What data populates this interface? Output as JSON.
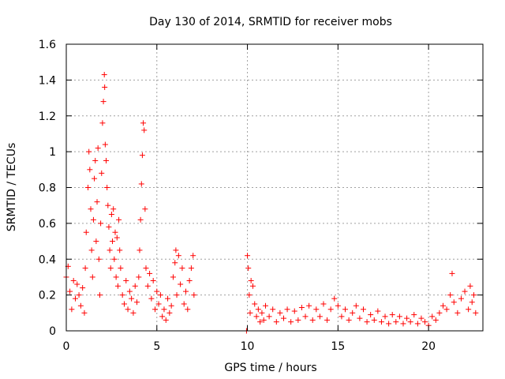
{
  "chart_data": {
    "type": "scatter",
    "title": "Day 130 of 2014, SRMTID for receiver mobs",
    "xlabel": "GPS time / hours",
    "ylabel": "SRMTID / TECUs",
    "xlim": [
      0,
      23
    ],
    "ylim": [
      0,
      1.6
    ],
    "grid": true,
    "x_ticks": [
      0,
      5,
      10,
      15,
      20
    ],
    "y_ticks": [
      0,
      0.2,
      0.4,
      0.6,
      0.8,
      1,
      1.2,
      1.4,
      1.6
    ],
    "x_tick_labels": [
      "0",
      "5",
      "10",
      "15",
      "20"
    ],
    "y_tick_labels": [
      "0",
      "0.2",
      "0.4",
      "0.6",
      "0.8",
      "1",
      "1.2",
      "1.4",
      "1.6"
    ],
    "marker": "plus",
    "color": "#ff0000",
    "series": [
      {
        "name": "mobs",
        "points": [
          [
            0.0,
            0.3
          ],
          [
            0.1,
            0.36
          ],
          [
            0.2,
            0.22
          ],
          [
            0.3,
            0.12
          ],
          [
            0.4,
            0.28
          ],
          [
            0.5,
            0.18
          ],
          [
            0.6,
            0.26
          ],
          [
            0.7,
            0.2
          ],
          [
            0.8,
            0.14
          ],
          [
            0.9,
            0.24
          ],
          [
            1.0,
            0.1
          ],
          [
            1.05,
            0.35
          ],
          [
            1.1,
            0.55
          ],
          [
            1.2,
            0.8
          ],
          [
            1.25,
            1.0
          ],
          [
            1.3,
            0.9
          ],
          [
            1.35,
            0.68
          ],
          [
            1.4,
            0.45
          ],
          [
            1.45,
            0.3
          ],
          [
            1.5,
            0.62
          ],
          [
            1.55,
            0.85
          ],
          [
            1.6,
            0.95
          ],
          [
            1.65,
            0.5
          ],
          [
            1.7,
            0.72
          ],
          [
            1.75,
            1.02
          ],
          [
            1.8,
            0.4
          ],
          [
            1.85,
            0.2
          ],
          [
            1.9,
            0.6
          ],
          [
            1.95,
            0.88
          ],
          [
            2.0,
            1.16
          ],
          [
            2.05,
            1.28
          ],
          [
            2.1,
            1.43
          ],
          [
            2.12,
            1.36
          ],
          [
            2.15,
            1.04
          ],
          [
            2.2,
            0.95
          ],
          [
            2.25,
            0.8
          ],
          [
            2.3,
            0.7
          ],
          [
            2.35,
            0.58
          ],
          [
            2.4,
            0.45
          ],
          [
            2.45,
            0.35
          ],
          [
            2.5,
            0.65
          ],
          [
            2.55,
            0.5
          ],
          [
            2.6,
            0.68
          ],
          [
            2.65,
            0.4
          ],
          [
            2.7,
            0.55
          ],
          [
            2.75,
            0.3
          ],
          [
            2.8,
            0.52
          ],
          [
            2.85,
            0.25
          ],
          [
            2.9,
            0.62
          ],
          [
            2.95,
            0.45
          ],
          [
            3.0,
            0.35
          ],
          [
            3.1,
            0.2
          ],
          [
            3.2,
            0.15
          ],
          [
            3.3,
            0.28
          ],
          [
            3.4,
            0.12
          ],
          [
            3.5,
            0.22
          ],
          [
            3.6,
            0.18
          ],
          [
            3.7,
            0.1
          ],
          [
            3.8,
            0.25
          ],
          [
            3.9,
            0.16
          ],
          [
            4.0,
            0.3
          ],
          [
            4.05,
            0.45
          ],
          [
            4.1,
            0.62
          ],
          [
            4.15,
            0.82
          ],
          [
            4.2,
            0.98
          ],
          [
            4.25,
            1.16
          ],
          [
            4.3,
            1.12
          ],
          [
            4.35,
            0.68
          ],
          [
            4.4,
            0.35
          ],
          [
            4.5,
            0.25
          ],
          [
            4.6,
            0.32
          ],
          [
            4.7,
            0.18
          ],
          [
            4.8,
            0.28
          ],
          [
            4.9,
            0.12
          ],
          [
            5.0,
            0.22
          ],
          [
            5.1,
            0.15
          ],
          [
            5.2,
            0.2
          ],
          [
            5.3,
            0.08
          ],
          [
            5.4,
            0.12
          ],
          [
            5.5,
            0.06
          ],
          [
            5.6,
            0.18
          ],
          [
            5.7,
            0.1
          ],
          [
            5.8,
            0.14
          ],
          [
            5.9,
            0.3
          ],
          [
            6.0,
            0.38
          ],
          [
            6.05,
            0.45
          ],
          [
            6.1,
            0.2
          ],
          [
            6.2,
            0.42
          ],
          [
            6.3,
            0.26
          ],
          [
            6.4,
            0.35
          ],
          [
            6.5,
            0.15
          ],
          [
            6.6,
            0.22
          ],
          [
            6.7,
            0.12
          ],
          [
            6.8,
            0.28
          ],
          [
            6.9,
            0.35
          ],
          [
            7.0,
            0.42
          ],
          [
            7.05,
            0.2
          ],
          [
            9.95,
            0.0
          ],
          [
            10.0,
            0.42
          ],
          [
            10.05,
            0.35
          ],
          [
            10.1,
            0.2
          ],
          [
            10.15,
            0.1
          ],
          [
            10.2,
            0.28
          ],
          [
            10.3,
            0.25
          ],
          [
            10.4,
            0.15
          ],
          [
            10.5,
            0.08
          ],
          [
            10.6,
            0.12
          ],
          [
            10.7,
            0.05
          ],
          [
            10.8,
            0.1
          ],
          [
            10.9,
            0.06
          ],
          [
            11.0,
            0.14
          ],
          [
            11.2,
            0.08
          ],
          [
            11.4,
            0.12
          ],
          [
            11.6,
            0.05
          ],
          [
            11.8,
            0.1
          ],
          [
            12.0,
            0.07
          ],
          [
            12.2,
            0.12
          ],
          [
            12.4,
            0.05
          ],
          [
            12.6,
            0.11
          ],
          [
            12.8,
            0.06
          ],
          [
            13.0,
            0.13
          ],
          [
            13.2,
            0.08
          ],
          [
            13.4,
            0.14
          ],
          [
            13.6,
            0.06
          ],
          [
            13.8,
            0.12
          ],
          [
            14.0,
            0.08
          ],
          [
            14.2,
            0.15
          ],
          [
            14.4,
            0.06
          ],
          [
            14.6,
            0.12
          ],
          [
            14.8,
            0.18
          ],
          [
            15.0,
            0.14
          ],
          [
            15.2,
            0.08
          ],
          [
            15.4,
            0.12
          ],
          [
            15.6,
            0.06
          ],
          [
            15.8,
            0.1
          ],
          [
            16.0,
            0.14
          ],
          [
            16.2,
            0.07
          ],
          [
            16.4,
            0.12
          ],
          [
            16.6,
            0.05
          ],
          [
            16.8,
            0.09
          ],
          [
            17.0,
            0.06
          ],
          [
            17.2,
            0.11
          ],
          [
            17.4,
            0.05
          ],
          [
            17.6,
            0.08
          ],
          [
            17.8,
            0.04
          ],
          [
            18.0,
            0.09
          ],
          [
            18.2,
            0.05
          ],
          [
            18.4,
            0.08
          ],
          [
            18.6,
            0.04
          ],
          [
            18.8,
            0.07
          ],
          [
            19.0,
            0.05
          ],
          [
            19.2,
            0.09
          ],
          [
            19.4,
            0.04
          ],
          [
            19.6,
            0.07
          ],
          [
            19.8,
            0.05
          ],
          [
            20.0,
            0.03
          ],
          [
            20.2,
            0.08
          ],
          [
            20.4,
            0.06
          ],
          [
            20.6,
            0.1
          ],
          [
            20.8,
            0.14
          ],
          [
            21.0,
            0.12
          ],
          [
            21.2,
            0.2
          ],
          [
            21.3,
            0.32
          ],
          [
            21.4,
            0.16
          ],
          [
            21.6,
            0.1
          ],
          [
            21.8,
            0.18
          ],
          [
            22.0,
            0.22
          ],
          [
            22.2,
            0.12
          ],
          [
            22.3,
            0.25
          ],
          [
            22.4,
            0.16
          ],
          [
            22.5,
            0.2
          ],
          [
            22.6,
            0.1
          ]
        ]
      }
    ]
  }
}
